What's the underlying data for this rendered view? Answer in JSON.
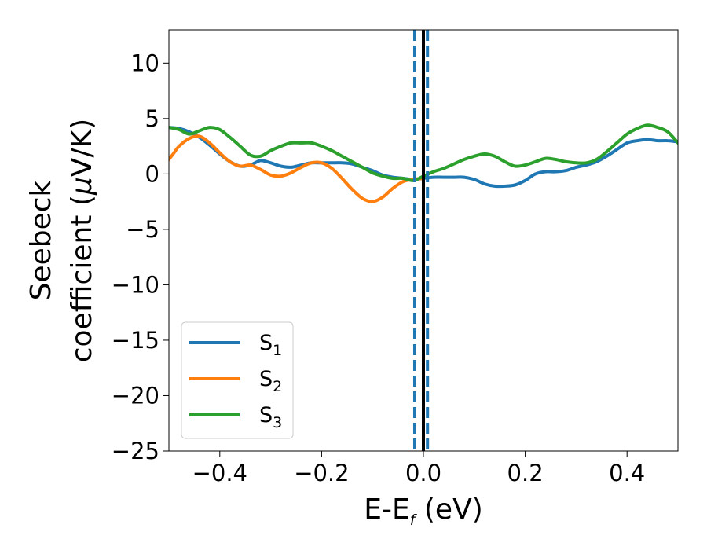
{
  "chart_data": {
    "type": "line",
    "xlabel": {
      "prefix": "E-E",
      "sub": "f",
      "suffix": " (eV)"
    },
    "ylabel_line1": "Seebeck",
    "ylabel_line2": {
      "prefix": "coefficient  (",
      "mu": "μ",
      "suffix": "V/K)"
    },
    "xlim": [
      -0.5,
      0.5
    ],
    "ylim": [
      -25,
      13
    ],
    "xticks": [
      -0.4,
      -0.2,
      0.0,
      0.2,
      0.4
    ],
    "xtick_labels": [
      "−0.4",
      "−0.2",
      "0.0",
      "0.2",
      "0.4"
    ],
    "yticks": [
      10,
      5,
      0,
      -5,
      -10,
      -15,
      -20,
      -25
    ],
    "ytick_labels": [
      "10",
      "5",
      "0",
      "−5",
      "−10",
      "−15",
      "−20",
      "−25"
    ],
    "grid": false,
    "legend_position": "lower-left",
    "series": [
      {
        "name": "S",
        "sub": "1",
        "color": "#1f77b4",
        "x": [
          -0.5,
          -0.48,
          -0.46,
          -0.44,
          -0.42,
          -0.4,
          -0.38,
          -0.36,
          -0.34,
          -0.32,
          -0.3,
          -0.28,
          -0.26,
          -0.24,
          -0.22,
          -0.2,
          -0.18,
          -0.16,
          -0.14,
          -0.12,
          -0.1,
          -0.08,
          -0.06,
          -0.04,
          -0.02,
          0.0,
          0.02,
          0.04,
          0.06,
          0.08,
          0.1,
          0.12,
          0.14,
          0.16,
          0.18,
          0.2,
          0.22,
          0.24,
          0.26,
          0.28,
          0.3,
          0.32,
          0.34,
          0.36,
          0.38,
          0.4,
          0.42,
          0.44,
          0.46,
          0.48,
          0.5
        ],
        "y": [
          4.2,
          4.1,
          3.8,
          3.3,
          2.6,
          1.8,
          1.1,
          0.7,
          0.8,
          1.2,
          1.0,
          0.7,
          0.6,
          0.8,
          1.0,
          1.0,
          1.0,
          1.0,
          0.9,
          0.6,
          0.3,
          -0.1,
          -0.3,
          -0.4,
          -0.5,
          -0.4,
          -0.3,
          -0.3,
          -0.3,
          -0.3,
          -0.5,
          -0.9,
          -1.1,
          -1.1,
          -1.0,
          -0.6,
          0.0,
          0.2,
          0.2,
          0.3,
          0.6,
          0.8,
          1.1,
          1.6,
          2.2,
          2.8,
          3.0,
          3.1,
          3.0,
          3.0,
          2.9
        ]
      },
      {
        "name": "S",
        "sub": "2",
        "color": "#ff7f0e",
        "x": [
          -0.5,
          -0.49,
          -0.48,
          -0.46,
          -0.44,
          -0.42,
          -0.4,
          -0.38,
          -0.36,
          -0.34,
          -0.32,
          -0.3,
          -0.28,
          -0.26,
          -0.24,
          -0.22,
          -0.2,
          -0.18,
          -0.16,
          -0.14,
          -0.12,
          -0.1,
          -0.08,
          -0.06,
          -0.04,
          -0.02,
          0.0
        ],
        "y": [
          1.3,
          1.9,
          2.5,
          3.2,
          3.4,
          2.8,
          1.9,
          1.1,
          0.7,
          0.8,
          0.4,
          -0.1,
          -0.2,
          0.1,
          0.6,
          1.0,
          1.0,
          0.5,
          -0.4,
          -1.4,
          -2.2,
          -2.5,
          -2.1,
          -1.3,
          -0.7,
          -0.5,
          -0.4
        ]
      },
      {
        "name": "S",
        "sub": "3",
        "color": "#2ca02c",
        "x": [
          -0.5,
          -0.48,
          -0.46,
          -0.44,
          -0.42,
          -0.4,
          -0.38,
          -0.36,
          -0.34,
          -0.32,
          -0.3,
          -0.28,
          -0.26,
          -0.24,
          -0.22,
          -0.2,
          -0.18,
          -0.16,
          -0.14,
          -0.12,
          -0.1,
          -0.08,
          -0.06,
          -0.04,
          -0.02,
          0.0,
          0.02,
          0.04,
          0.06,
          0.08,
          0.1,
          0.12,
          0.14,
          0.16,
          0.18,
          0.2,
          0.22,
          0.24,
          0.26,
          0.28,
          0.3,
          0.32,
          0.34,
          0.36,
          0.38,
          0.4,
          0.42,
          0.44,
          0.46,
          0.48,
          0.5
        ],
        "y": [
          4.2,
          4.0,
          3.6,
          3.9,
          4.2,
          4.0,
          3.3,
          2.5,
          1.7,
          1.6,
          2.1,
          2.5,
          2.8,
          2.8,
          2.8,
          2.5,
          2.1,
          1.6,
          1.1,
          0.6,
          0.1,
          -0.2,
          -0.4,
          -0.4,
          -0.6,
          -0.2,
          0.2,
          0.5,
          0.9,
          1.3,
          1.6,
          1.8,
          1.6,
          1.1,
          0.7,
          0.8,
          1.1,
          1.4,
          1.3,
          1.1,
          1.0,
          1.0,
          1.3,
          2.0,
          2.8,
          3.6,
          4.1,
          4.4,
          4.2,
          3.8,
          2.8
        ]
      }
    ],
    "vertical_lines": [
      {
        "x": -0.017,
        "style": "dashed",
        "color": "#1f77b4"
      },
      {
        "x": 0.0,
        "style": "solid",
        "color": "#000000"
      },
      {
        "x": 0.008,
        "style": "dashed",
        "color": "#1f77b4"
      }
    ]
  }
}
